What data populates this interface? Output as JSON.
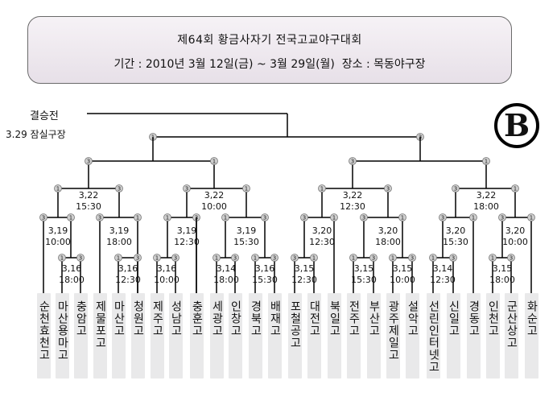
{
  "header": {
    "title": "제64회 황금사자기 전국고교야구대회",
    "info": "기간 : 2010년 3월 12일(금) ~ 3월 29일(월)  장소 : 목동야구장"
  },
  "final": {
    "label": "결승전",
    "info": "3.29 잠실구장"
  },
  "logo": {
    "letter": "B"
  },
  "markers": {
    "winner": "1",
    "runner_up": "3"
  },
  "schools": [
    "순천효천고",
    "마산용마고",
    "충암고",
    "제물포고",
    "마산고",
    "청원고",
    "제주고",
    "성남고",
    "충훈고",
    "세광고",
    "인창고",
    "경북고",
    "배재고",
    "포철공고",
    "대전고",
    "북일고",
    "전주고",
    "부산고",
    "광주제일고",
    "설악고",
    "선린인터넷고",
    "신일고",
    "경동고",
    "인천고",
    "군산상고",
    "화순고"
  ],
  "game_labels": [
    {
      "date": "3,22",
      "time": "15:30"
    },
    {
      "date": "3,22",
      "time": "10:00"
    },
    {
      "date": "3,22",
      "time": "12:30"
    },
    {
      "date": "3,22",
      "time": "18:00"
    },
    {
      "date": "3,19",
      "time": "10:00"
    },
    {
      "date": "3,19",
      "time": "18:00"
    },
    {
      "date": "3,19",
      "time": "12:30"
    },
    {
      "date": "3,19",
      "time": "15:30"
    },
    {
      "date": "3,20",
      "time": "12:30"
    },
    {
      "date": "3,20",
      "time": "18:00"
    },
    {
      "date": "3,20",
      "time": "15:30"
    },
    {
      "date": "3,20",
      "time": "10:00"
    },
    {
      "date": "3,16",
      "time": "18:00"
    },
    {
      "date": "3,16",
      "time": "12:30"
    },
    {
      "date": "3,16",
      "time": "10:00"
    },
    {
      "date": "3,14",
      "time": "18:00"
    },
    {
      "date": "3,16",
      "time": "15:30"
    },
    {
      "date": "3,15",
      "time": "12:30"
    },
    {
      "date": "3,15",
      "time": "15:30"
    },
    {
      "date": "3,15",
      "time": "10:00"
    },
    {
      "date": "3,14",
      "time": "12:30"
    },
    {
      "date": "3,15",
      "time": "18:00"
    }
  ]
}
